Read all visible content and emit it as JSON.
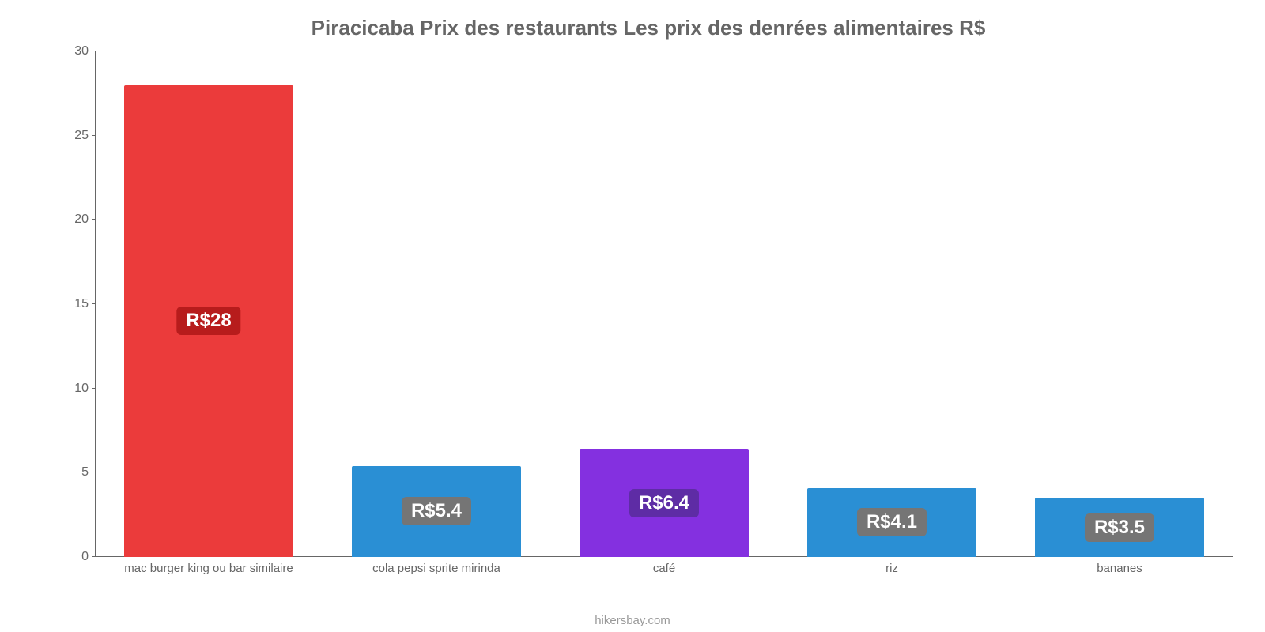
{
  "chart": {
    "type": "bar",
    "title": "Piracicaba Prix des restaurants Les prix des denrées alimentaires R$",
    "title_fontsize": 26,
    "title_color": "#666666",
    "background_color": "#ffffff",
    "axis_color": "#666666",
    "tick_font_color": "#666666",
    "tick_fontsize": 16,
    "xlabel_fontsize": 15,
    "ylim": [
      0,
      30
    ],
    "ytick_step": 5,
    "yticks": [
      0,
      5,
      10,
      15,
      20,
      25,
      30
    ],
    "bar_width_pct": 74,
    "value_label_fontsize": 24,
    "value_label_text_color": "#ffffff",
    "categories": [
      "mac burger king ou bar similaire",
      "cola pepsi sprite mirinda",
      "café",
      "riz",
      "bananes"
    ],
    "values": [
      28,
      5.4,
      6.4,
      4.1,
      3.5
    ],
    "value_labels": [
      "R$28",
      "R$5.4",
      "R$6.4",
      "R$4.1",
      "R$3.5"
    ],
    "bar_colors": [
      "#eb3b3b",
      "#2a8fd4",
      "#8430e0",
      "#2a8fd4",
      "#2a8fd4"
    ],
    "badge_colors": [
      "#b71c1c",
      "#757575",
      "#5e2ca5",
      "#757575",
      "#757575"
    ],
    "credit": "hikersbay.com",
    "credit_color": "#999999",
    "credit_fontsize": 15
  }
}
